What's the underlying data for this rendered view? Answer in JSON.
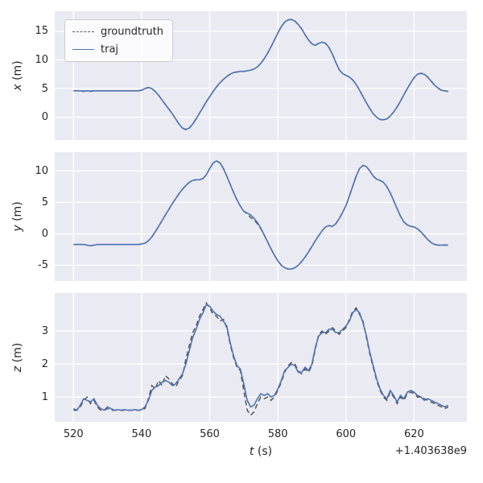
{
  "figure": {
    "background": "#ffffff",
    "axes_background": "#eaeaf2",
    "grid_color": "#ffffff",
    "tick_color": "#262626"
  },
  "chart_data": {
    "type": "line",
    "title": "",
    "xlabel": "t (s)",
    "x_axis_offset": "+1.403638e9",
    "grid": true,
    "legend_position": "upper left",
    "xlim": [
      514.5,
      635.5
    ],
    "xticks": [
      520,
      540,
      560,
      580,
      600,
      620
    ],
    "legend": [
      {
        "label": "groundtruth",
        "style": "dashed",
        "color": "#555555"
      },
      {
        "label": "traj",
        "style": "solid",
        "color": "#4c72b0"
      }
    ],
    "x": [
      520,
      521,
      522,
      523,
      524,
      525,
      526,
      527,
      528,
      529,
      530,
      531,
      532,
      533,
      534,
      535,
      536,
      537,
      538,
      539,
      540,
      541,
      542,
      543,
      544,
      545,
      546,
      547,
      548,
      549,
      550,
      551,
      552,
      553,
      554,
      555,
      556,
      557,
      558,
      559,
      560,
      561,
      562,
      563,
      564,
      565,
      566,
      567,
      568,
      569,
      570,
      571,
      572,
      573,
      574,
      575,
      576,
      577,
      578,
      579,
      580,
      581,
      582,
      583,
      584,
      585,
      586,
      587,
      588,
      589,
      590,
      591,
      592,
      593,
      594,
      595,
      596,
      597,
      598,
      599,
      600,
      601,
      602,
      603,
      604,
      605,
      606,
      607,
      608,
      609,
      610,
      611,
      612,
      613,
      614,
      615,
      616,
      617,
      618,
      619,
      620,
      621,
      622,
      623,
      624,
      625,
      626,
      627,
      628,
      629,
      630
    ],
    "subplots": [
      {
        "ylabel": "x (m)",
        "ylim": [
          -4,
          18.5
        ],
        "yticks": [
          0,
          5,
          10,
          15
        ],
        "series": [
          {
            "name": "groundtruth",
            "values": [
              4.6,
              4.6,
              4.6,
              4.5,
              4.6,
              4.5,
              4.6,
              4.6,
              4.6,
              4.6,
              4.6,
              4.6,
              4.6,
              4.6,
              4.6,
              4.6,
              4.6,
              4.6,
              4.6,
              4.6,
              4.7,
              5.0,
              5.2,
              5.0,
              4.5,
              3.8,
              3.0,
              2.2,
              1.4,
              0.6,
              -0.3,
              -1.2,
              -1.9,
              -2.2,
              -1.9,
              -1.2,
              -0.3,
              0.7,
              1.7,
              2.7,
              3.6,
              4.5,
              5.3,
              6.0,
              6.6,
              7.1,
              7.5,
              7.8,
              7.9,
              8.0,
              8.0,
              8.1,
              8.2,
              8.4,
              8.8,
              9.4,
              10.2,
              11.2,
              12.3,
              13.5,
              14.7,
              15.8,
              16.6,
              17.0,
              17.1,
              16.8,
              16.2,
              15.4,
              14.4,
              13.5,
              12.8,
              12.6,
              12.9,
              13.1,
              12.9,
              12.2,
              11.0,
              9.6,
              8.3,
              7.6,
              7.3,
              7.0,
              6.5,
              5.7,
              4.7,
              3.6,
              2.5,
              1.5,
              0.6,
              0.0,
              -0.4,
              -0.5,
              -0.3,
              0.2,
              0.9,
              1.8,
              2.8,
              3.9,
              5.0,
              6.0,
              6.9,
              7.5,
              7.7,
              7.5,
              7.0,
              6.3,
              5.6,
              5.1,
              4.7,
              4.6,
              4.5
            ]
          },
          {
            "name": "traj",
            "values": [
              4.6,
              4.6,
              4.6,
              4.55,
              4.6,
              4.55,
              4.6,
              4.6,
              4.6,
              4.6,
              4.6,
              4.6,
              4.6,
              4.6,
              4.6,
              4.6,
              4.6,
              4.6,
              4.6,
              4.6,
              4.7,
              5.0,
              5.15,
              5.0,
              4.5,
              3.8,
              3.0,
              2.2,
              1.4,
              0.6,
              -0.3,
              -1.2,
              -1.9,
              -2.15,
              -1.9,
              -1.2,
              -0.3,
              0.7,
              1.7,
              2.7,
              3.6,
              4.5,
              5.3,
              6.0,
              6.6,
              7.1,
              7.5,
              7.8,
              7.9,
              8.0,
              8.0,
              8.1,
              8.2,
              8.4,
              8.8,
              9.4,
              10.2,
              11.2,
              12.3,
              13.5,
              14.7,
              15.8,
              16.6,
              17.0,
              17.05,
              16.8,
              16.2,
              15.4,
              14.4,
              13.5,
              12.8,
              12.55,
              12.9,
              13.1,
              12.9,
              12.2,
              11.0,
              9.6,
              8.3,
              7.6,
              7.3,
              7.0,
              6.5,
              5.7,
              4.7,
              3.6,
              2.5,
              1.5,
              0.6,
              0.0,
              -0.4,
              -0.45,
              -0.3,
              0.2,
              0.9,
              1.8,
              2.8,
              3.9,
              5.0,
              6.0,
              6.9,
              7.5,
              7.65,
              7.5,
              7.0,
              6.3,
              5.6,
              5.1,
              4.7,
              4.6,
              4.5
            ]
          }
        ]
      },
      {
        "ylabel": "y (m)",
        "ylim": [
          -7.5,
          13
        ],
        "yticks": [
          -5,
          0,
          5,
          10
        ],
        "series": [
          {
            "name": "groundtruth",
            "values": [
              -1.7,
              -1.7,
              -1.7,
              -1.7,
              -1.8,
              -1.9,
              -1.8,
              -1.7,
              -1.7,
              -1.7,
              -1.7,
              -1.7,
              -1.7,
              -1.7,
              -1.7,
              -1.7,
              -1.7,
              -1.7,
              -1.7,
              -1.7,
              -1.6,
              -1.5,
              -1.1,
              -0.5,
              0.3,
              1.2,
              2.1,
              3.0,
              3.9,
              4.8,
              5.6,
              6.4,
              7.1,
              7.7,
              8.2,
              8.5,
              8.6,
              8.6,
              8.8,
              9.4,
              10.4,
              11.3,
              11.6,
              11.3,
              10.4,
              9.2,
              7.9,
              6.6,
              5.4,
              4.4,
              3.6,
              3.2,
              2.6,
              2.2,
              1.6,
              0.8,
              -0.2,
              -1.3,
              -2.4,
              -3.4,
              -4.3,
              -5.0,
              -5.4,
              -5.6,
              -5.6,
              -5.4,
              -5.0,
              -4.4,
              -3.7,
              -2.9,
              -2.0,
              -1.1,
              -0.3,
              0.5,
              1.1,
              1.3,
              1.2,
              1.6,
              2.4,
              3.4,
              4.5,
              6.0,
              7.6,
              9.2,
              10.4,
              10.9,
              10.7,
              10.0,
              9.2,
              8.7,
              8.5,
              8.2,
              7.5,
              6.5,
              5.3,
              4.0,
              2.8,
              1.9,
              1.4,
              1.2,
              1.1,
              0.8,
              0.3,
              -0.3,
              -0.9,
              -1.4,
              -1.7,
              -1.8,
              -1.8,
              -1.8,
              -1.8
            ]
          },
          {
            "name": "traj",
            "values": [
              -1.7,
              -1.7,
              -1.7,
              -1.7,
              -1.8,
              -1.9,
              -1.8,
              -1.7,
              -1.7,
              -1.7,
              -1.7,
              -1.7,
              -1.7,
              -1.7,
              -1.7,
              -1.7,
              -1.7,
              -1.7,
              -1.7,
              -1.7,
              -1.6,
              -1.5,
              -1.1,
              -0.5,
              0.3,
              1.2,
              2.1,
              3.0,
              3.9,
              4.8,
              5.6,
              6.4,
              7.1,
              7.7,
              8.2,
              8.5,
              8.6,
              8.6,
              8.8,
              9.4,
              10.4,
              11.3,
              11.6,
              11.3,
              10.4,
              9.2,
              7.9,
              6.6,
              5.4,
              4.4,
              3.6,
              3.3,
              3.0,
              2.5,
              1.8,
              0.9,
              -0.2,
              -1.3,
              -2.4,
              -3.4,
              -4.3,
              -5.0,
              -5.4,
              -5.6,
              -5.6,
              -5.4,
              -5.0,
              -4.4,
              -3.7,
              -2.9,
              -2.0,
              -1.1,
              -0.3,
              0.5,
              1.1,
              1.3,
              1.2,
              1.6,
              2.4,
              3.4,
              4.5,
              6.0,
              7.6,
              9.2,
              10.4,
              10.9,
              10.7,
              10.0,
              9.2,
              8.7,
              8.5,
              8.2,
              7.5,
              6.5,
              5.3,
              4.0,
              2.8,
              1.9,
              1.4,
              1.2,
              1.1,
              0.8,
              0.3,
              -0.3,
              -0.9,
              -1.4,
              -1.7,
              -1.8,
              -1.8,
              -1.8,
              -1.8
            ]
          }
        ]
      },
      {
        "ylabel": "z (m)",
        "ylim": [
          0.25,
          4.15
        ],
        "yticks": [
          1,
          2,
          3
        ],
        "series": [
          {
            "name": "groundtruth",
            "values": [
              0.6,
              0.6,
              0.7,
              0.9,
              1.0,
              0.8,
              0.9,
              0.7,
              0.6,
              0.6,
              0.65,
              0.6,
              0.6,
              0.6,
              0.6,
              0.6,
              0.6,
              0.6,
              0.6,
              0.6,
              0.6,
              0.65,
              0.95,
              1.35,
              1.25,
              1.5,
              1.35,
              1.65,
              1.55,
              1.4,
              1.3,
              1.5,
              1.65,
              2.15,
              2.55,
              2.95,
              3.15,
              3.45,
              3.65,
              3.85,
              3.7,
              3.5,
              3.45,
              3.3,
              3.35,
              3.1,
              2.6,
              2.2,
              1.9,
              1.8,
              1.2,
              0.6,
              0.45,
              0.55,
              0.8,
              1.0,
              0.95,
              1.0,
              0.9,
              1.0,
              1.2,
              1.45,
              1.75,
              1.95,
              2.05,
              2.0,
              1.8,
              1.7,
              1.85,
              1.75,
              1.95,
              2.45,
              2.9,
              3.0,
              2.9,
              3.0,
              3.1,
              3.0,
              2.9,
              3.0,
              3.1,
              3.35,
              3.6,
              3.7,
              3.5,
              3.3,
              2.8,
              2.3,
              1.9,
              1.5,
              1.2,
              1.0,
              0.9,
              1.15,
              1.0,
              0.8,
              1.0,
              0.9,
              1.1,
              1.15,
              1.1,
              1.0,
              1.0,
              0.95,
              0.9,
              0.85,
              0.8,
              0.75,
              0.7,
              0.65,
              0.7
            ]
          },
          {
            "name": "traj",
            "values": [
              0.65,
              0.6,
              0.75,
              0.95,
              0.9,
              0.85,
              0.95,
              0.75,
              0.65,
              0.6,
              0.7,
              0.65,
              0.6,
              0.62,
              0.6,
              0.62,
              0.6,
              0.6,
              0.62,
              0.6,
              0.62,
              0.7,
              0.9,
              1.2,
              1.3,
              1.35,
              1.45,
              1.5,
              1.45,
              1.35,
              1.4,
              1.55,
              1.7,
              2.0,
              2.4,
              2.8,
              3.05,
              3.35,
              3.55,
              3.8,
              3.75,
              3.6,
              3.5,
              3.45,
              3.3,
              3.15,
              2.65,
              2.25,
              1.95,
              1.85,
              1.4,
              0.9,
              0.7,
              0.75,
              0.95,
              1.1,
              1.05,
              1.1,
              1.0,
              1.05,
              1.25,
              1.5,
              1.8,
              1.9,
              2.0,
              1.95,
              1.75,
              1.75,
              1.9,
              1.8,
              2.0,
              2.5,
              2.85,
              2.95,
              2.95,
              3.05,
              3.05,
              2.95,
              2.95,
              3.05,
              3.15,
              3.3,
              3.55,
              3.65,
              3.55,
              3.25,
              2.85,
              2.35,
              1.95,
              1.55,
              1.25,
              1.05,
              0.95,
              1.2,
              1.05,
              0.85,
              1.05,
              0.95,
              1.15,
              1.2,
              1.15,
              1.05,
              1.0,
              0.9,
              0.95,
              0.9,
              0.85,
              0.8,
              0.75,
              0.7,
              0.75
            ]
          }
        ]
      }
    ]
  }
}
